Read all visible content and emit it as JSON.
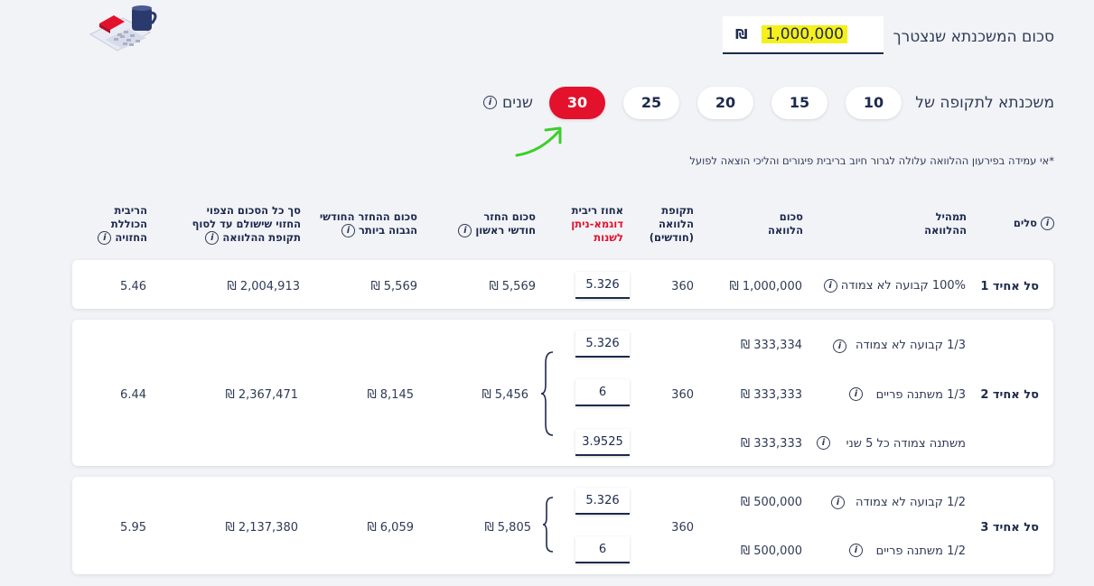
{
  "top": {
    "amount_label": "סכום המשכנתא שנצטרך",
    "amount_value": "1,000,000",
    "currency": "₪",
    "period_label": "משכנתא לתקופה של",
    "terms": [
      "10",
      "15",
      "20",
      "25",
      "30"
    ],
    "years_label": "שנים",
    "disclaimer": "*אי עמידה בפירעון ההלוואה עלולה לגרור חיוב בריבית פיגורים והליכי הוצאה לפועל"
  },
  "headers": {
    "basket": "סלים",
    "mix_1": "תמהיל",
    "mix_2": "ההלוואה",
    "loan_1": "סכום",
    "loan_2": "הלוואה",
    "period_1": "תקופת",
    "period_2": "הלוואה",
    "period_3": "(חודשים)",
    "rate_1": "אחוז ריבית",
    "rate_2": "דוגמא-ניתן",
    "rate_3": "לשנות",
    "first_1": "סכום החזר",
    "first_2": "חודשי ראשון",
    "max_1": "סכום ההחזר החודשי",
    "max_2": "הגבוה ביותר",
    "total_1": "סך כל הסכום הצפוי",
    "total_2": "החזוי שישולם עד לסוף",
    "total_3": "תקופת ההלוואה",
    "eff_1": "הריבית",
    "eff_2": "הכוללת",
    "eff_3": "החזויה"
  },
  "baskets": [
    {
      "name": "סל אחיד 1",
      "tracks": [
        {
          "label": "100% קבועה לא צמודה",
          "amount": "1,000,000 ₪",
          "rate": "5.326"
        }
      ],
      "months": "360",
      "first_payment": "5,569 ₪",
      "max_payment": "5,569 ₪",
      "total": "2,004,913 ₪",
      "effective_rate": "5.46"
    },
    {
      "name": "סל אחיד 2",
      "tracks": [
        {
          "label": "1/3 קבועה לא צמודה",
          "amount": "333,334 ₪",
          "rate": "5.326"
        },
        {
          "label": "1/3 משתנה פריים",
          "amount": "333,333 ₪",
          "rate": "6"
        },
        {
          "label": "משתנה צמודה כל 5 שני",
          "amount": "333,333 ₪",
          "rate": "3.9525"
        }
      ],
      "months": "360",
      "first_payment": "5,456 ₪",
      "max_payment": "8,145 ₪",
      "total": "2,367,471 ₪",
      "effective_rate": "6.44"
    },
    {
      "name": "סל אחיד 3",
      "tracks": [
        {
          "label": "1/2 קבועה לא צמודה",
          "amount": "500,000 ₪",
          "rate": "5.326"
        },
        {
          "label": "1/2 משתנה פריים",
          "amount": "500,000 ₪",
          "rate": "6"
        }
      ],
      "months": "360",
      "first_payment": "5,805 ₪",
      "max_payment": "6,059 ₪",
      "total": "2,137,380 ₪",
      "effective_rate": "5.95"
    }
  ],
  "colors": {
    "accent_red": "#e3112c",
    "navy": "#1d2a4d",
    "highlight": "#f5ef1b",
    "arrow_green": "#3ccf2a"
  }
}
